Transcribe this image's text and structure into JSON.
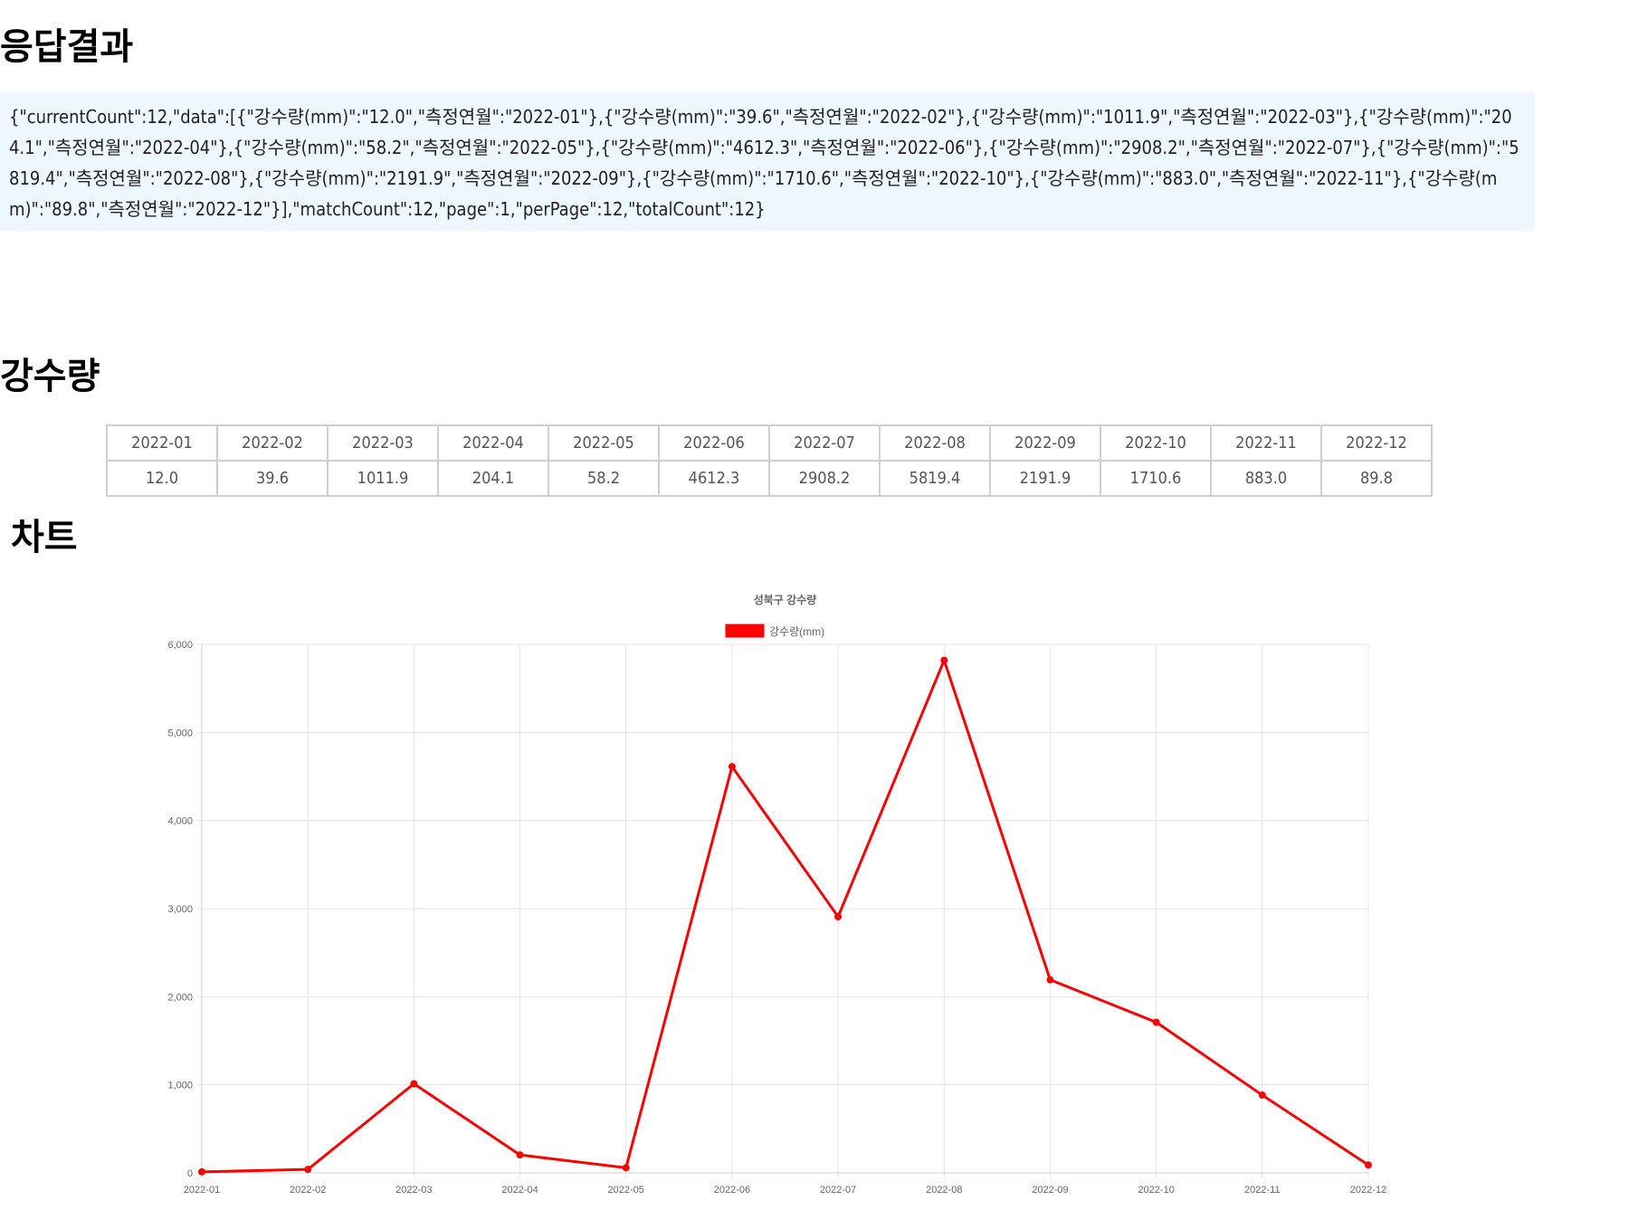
{
  "headings": {
    "result": "응답결과",
    "rainfall": "강수량",
    "chart": "차트"
  },
  "response_json": "{\"currentCount\":12,\"data\":[{\"강수량(mm)\":\"12.0\",\"측정연월\":\"2022-01\"},{\"강수량(mm)\":\"39.6\",\"측정연월\":\"2022-02\"},{\"강수량(mm)\":\"1011.9\",\"측정연월\":\"2022-03\"},{\"강수량(mm)\":\"204.1\",\"측정연월\":\"2022-04\"},{\"강수량(mm)\":\"58.2\",\"측정연월\":\"2022-05\"},{\"강수량(mm)\":\"4612.3\",\"측정연월\":\"2022-06\"},{\"강수량(mm)\":\"2908.2\",\"측정연월\":\"2022-07\"},{\"강수량(mm)\":\"5819.4\",\"측정연월\":\"2022-08\"},{\"강수량(mm)\":\"2191.9\",\"측정연월\":\"2022-09\"},{\"강수량(mm)\":\"1710.6\",\"측정연월\":\"2022-10\"},{\"강수량(mm)\":\"883.0\",\"측정연월\":\"2022-11\"},{\"강수량(mm)\":\"89.8\",\"측정연월\":\"2022-12\"}],\"matchCount\":12,\"page\":1,\"perPage\":12,\"totalCount\":12}",
  "table": {
    "months": [
      "2022-01",
      "2022-02",
      "2022-03",
      "2022-04",
      "2022-05",
      "2022-06",
      "2022-07",
      "2022-08",
      "2022-09",
      "2022-10",
      "2022-11",
      "2022-12"
    ],
    "values": [
      "12.0",
      "39.6",
      "1011.9",
      "204.1",
      "58.2",
      "4612.3",
      "2908.2",
      "5819.4",
      "2191.9",
      "1710.6",
      "883.0",
      "89.8"
    ]
  },
  "chart_data": {
    "type": "line",
    "title": "성북구 강수량",
    "categories": [
      "2022-01",
      "2022-02",
      "2022-03",
      "2022-04",
      "2022-05",
      "2022-06",
      "2022-07",
      "2022-08",
      "2022-09",
      "2022-10",
      "2022-11",
      "2022-12"
    ],
    "series": [
      {
        "name": "강수량(mm)",
        "color": "#ff0000",
        "values": [
          12.0,
          39.6,
          1011.9,
          204.1,
          58.2,
          4612.3,
          2908.2,
          5819.4,
          2191.9,
          1710.6,
          883.0,
          89.8
        ]
      }
    ],
    "ylim": [
      0,
      6000
    ],
    "yticks": [
      "0",
      "1,000",
      "2,000",
      "3,000",
      "4,000",
      "5,000",
      "6,000"
    ],
    "grid": true,
    "legend": "top"
  }
}
